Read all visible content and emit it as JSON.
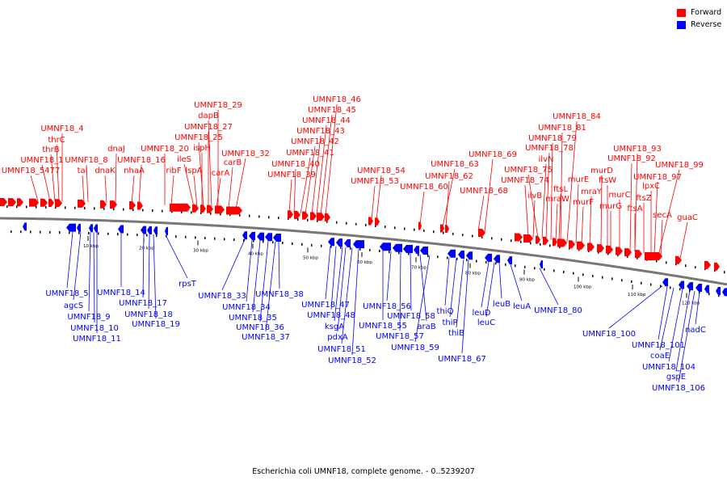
{
  "caption": "Escherichia coli UMNF18, complete genome. - 0..5239207",
  "legend": {
    "forward_label": "Forward",
    "reverse_label": "Reverse",
    "forward_color": "#ff0000",
    "reverse_color": "#0000ff"
  },
  "colors": {
    "forward": "#ff0000",
    "reverse": "#0000ff",
    "backbone": "#777777"
  },
  "ticks": [
    "10 kbp",
    "20 kbp",
    "30 kbp",
    "40 kbp",
    "50 kbp",
    "60 kbp",
    "70 kbp",
    "80 kbp",
    "90 kbp",
    "100 kbp",
    "110 kbp",
    "120 kbp"
  ],
  "forward_labels": [
    "UMNF18_4",
    "thrC",
    "thrB",
    "UMNF18_1",
    "UMNF18_5477",
    "UMNF18_8",
    "tal",
    "dnaJ",
    "dnaK",
    "UMNF18_16",
    "nhaA",
    "UMNF18_20",
    "ribF",
    "UMNF18_29",
    "dapB",
    "UMNF18_27",
    "UMNF18_25",
    "ispH",
    "ileS",
    "lspA",
    "carA",
    "carB",
    "UMNF18_32",
    "UMNF18_46",
    "UMNF18_45",
    "UMNF18_44",
    "UMNF18_43",
    "UMNF18_42",
    "UMNF18_41",
    "UMNF18_40",
    "UMNF18_39",
    "UMNF18_54",
    "UMNF18_53",
    "UMNF18_60",
    "UMNF18_63",
    "UMNF18_62",
    "UMNF18_69",
    "UMNF18_68",
    "UMNF18_84",
    "UMNF18_81",
    "UMNF18_79",
    "UMNF18_78",
    "ilvN",
    "UMNF18_75",
    "UMNF18_74",
    "ilvB",
    "ftsL",
    "mraW",
    "murE",
    "murF",
    "mraY",
    "murD",
    "ftsW",
    "murG",
    "murC",
    "UMNF18_93",
    "UMNF18_92",
    "UMNF18_99",
    "UMNF18_97",
    "lpxC",
    "ftsZ",
    "ftsA",
    "secA",
    "guaC"
  ],
  "reverse_labels": [
    "UMNF18_5",
    "agcS",
    "UMNF18_9",
    "UMNF18_10",
    "UMNF18_11",
    "UMNF18_14",
    "UMNF18_17",
    "UMNF18_18",
    "UMNF18_19",
    "rpsT",
    "UMNF18_33",
    "UMNF18_34",
    "UMNF18_35",
    "UMNF18_36",
    "UMNF18_37",
    "UMNF18_38",
    "UMNF18_47",
    "UMNF18_48",
    "ksgA",
    "pdxA",
    "UMNF18_51",
    "UMNF18_52",
    "UMNF18_55",
    "UMNF18_56",
    "UMNF18_57",
    "UMNF18_58",
    "araB",
    "UMNF18_59",
    "thiQ",
    "thiP",
    "thiB",
    "UMNF18_67",
    "leuD",
    "leuC",
    "leuB",
    "leuA",
    "UMNF18_80",
    "UMNF18_100",
    "UMNF18_101",
    "coaE",
    "UMNF18_104",
    "gspE",
    "UMNF18_106",
    "nadC"
  ]
}
